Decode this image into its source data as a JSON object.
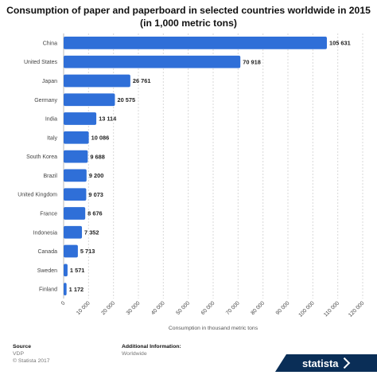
{
  "chart_data": {
    "type": "bar",
    "orientation": "horizontal",
    "title": "Consumption of paper and paperboard in selected countries worldwide in 2015",
    "subtitle": "(in 1,000 metric tons)",
    "xlabel": "Consumption in thousand metric tons",
    "ylabel": "",
    "xlim": [
      0,
      120000
    ],
    "x_ticks": [
      0,
      10000,
      20000,
      30000,
      40000,
      50000,
      60000,
      70000,
      80000,
      90000,
      100000,
      110000,
      120000
    ],
    "x_tick_labels": [
      "0",
      "10 000",
      "20 000",
      "30 000",
      "40 000",
      "50 000",
      "60 000",
      "70 000",
      "80 000",
      "90 000",
      "100 000",
      "110 000",
      "120 000"
    ],
    "grid": true,
    "categories": [
      "China",
      "United States",
      "Japan",
      "Germany",
      "India",
      "Italy",
      "South Korea",
      "Brazil",
      "United Kingdom",
      "France",
      "Indonesia",
      "Canada",
      "Sweden",
      "Finland"
    ],
    "values": [
      105631,
      70918,
      26761,
      20575,
      13114,
      10086,
      9688,
      9200,
      9073,
      8676,
      7352,
      5713,
      1571,
      1172
    ],
    "value_labels": [
      "105 631",
      "70 918",
      "26 761",
      "20 575",
      "13 114",
      "10 086",
      "9 688",
      "9 200",
      "9 073",
      "8 676",
      "7 352",
      "5 713",
      "1 571",
      "1 172"
    ],
    "bar_color": "#2f6fd8"
  },
  "footer": {
    "source_heading": "Source",
    "source_lines": [
      "VDP",
      "© Statista 2017"
    ],
    "info_heading": "Additional Information:",
    "info_lines": [
      "Worldwide"
    ]
  },
  "brand": {
    "name": "statista",
    "color": "#0a2e57"
  }
}
